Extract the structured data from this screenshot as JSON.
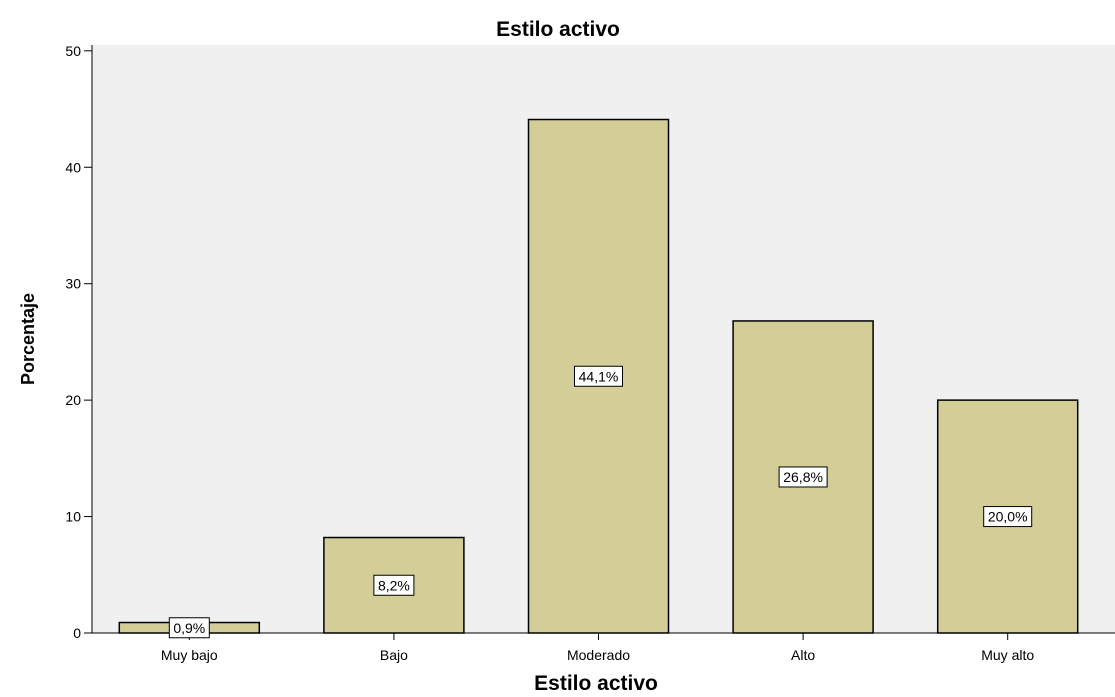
{
  "chart_data": {
    "type": "bar",
    "title": "Estilo activo",
    "xlabel": "Estilo activo",
    "ylabel": "Porcentaje",
    "categories": [
      "Muy bajo",
      "Bajo",
      "Moderado",
      "Alto",
      "Muy alto"
    ],
    "values": [
      0.9,
      8.2,
      44.1,
      26.8,
      20.0
    ],
    "data_labels": [
      "0,9%",
      "8,2%",
      "44,1%",
      "26,8%",
      "20,0%"
    ],
    "yticks": [
      0,
      10,
      20,
      30,
      40,
      50
    ],
    "ylim": [
      0,
      50.5
    ],
    "grid": false,
    "legend": "none",
    "colors": {
      "plot_background": "#f0f0f0",
      "bar_fill": "#d3ce97",
      "bar_stroke": "#000000",
      "label_box_fill": "#ffffff"
    }
  }
}
